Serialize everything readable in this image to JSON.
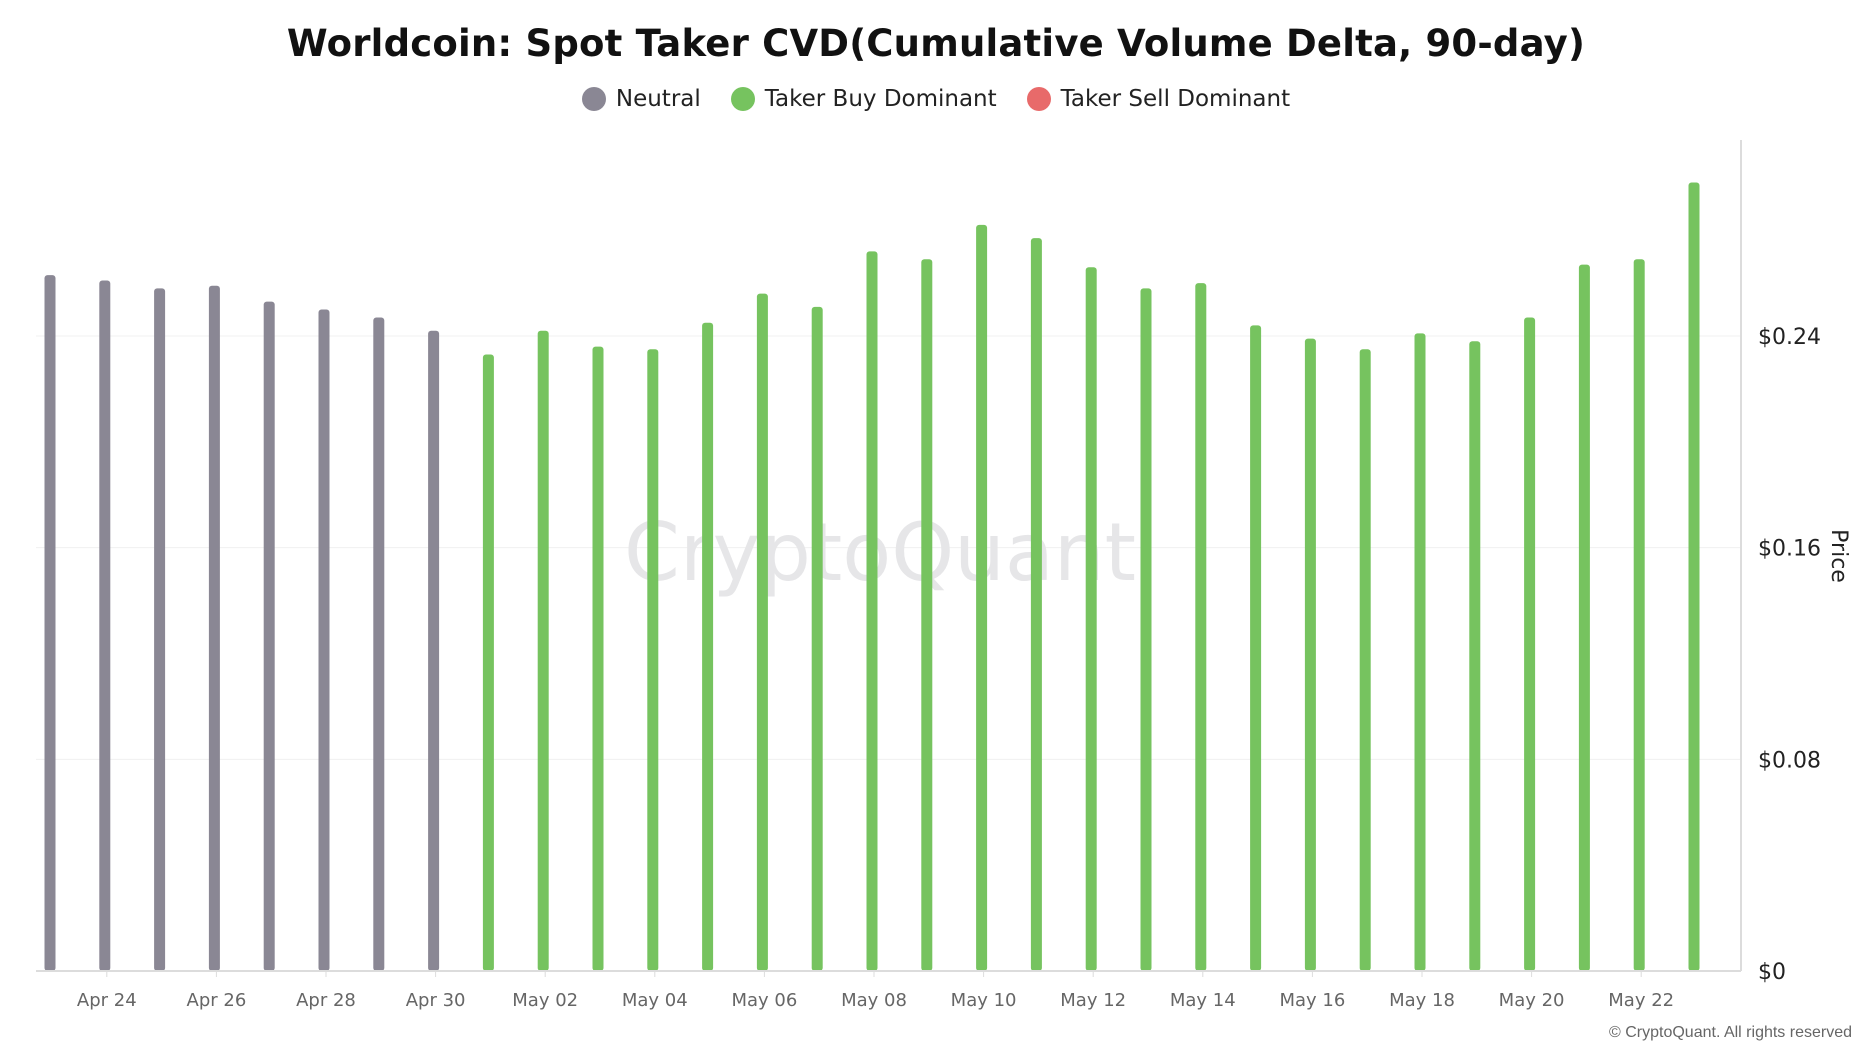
{
  "title": "Worldcoin: Spot Taker CVD(Cumulative Volume Delta, 90-day)",
  "legend": [
    {
      "label": "Neutral",
      "color": "#8a8794"
    },
    {
      "label": "Taker Buy Dominant",
      "color": "#76c35f"
    },
    {
      "label": "Taker Sell Dominant",
      "color": "#e86a6a"
    }
  ],
  "watermark": "CryptoQuant",
  "copyright": "© CryptoQuant. All rights reserved",
  "chart_data": {
    "type": "bar",
    "ylabel": "Price",
    "ylim": [
      0,
      0.3
    ],
    "yticks": [
      "$0",
      "$0.08",
      "$0.16",
      "$0.24"
    ],
    "ytick_values": [
      0,
      0.08,
      0.16,
      0.24
    ],
    "xtick_labels": [
      "Apr 24",
      "Apr 26",
      "Apr 28",
      "Apr 30",
      "May 02",
      "May 04",
      "May 06",
      "May 08",
      "May 10",
      "May 12",
      "May 14",
      "May 16",
      "May 18",
      "May 20",
      "May 22"
    ],
    "categories": [
      "Apr 23",
      "Apr 24",
      "Apr 25",
      "Apr 26",
      "Apr 27",
      "Apr 28",
      "Apr 29",
      "Apr 30",
      "May 01",
      "May 02",
      "May 03",
      "May 04",
      "May 05",
      "May 06",
      "May 07",
      "May 08",
      "May 09",
      "May 10",
      "May 11",
      "May 12",
      "May 13",
      "May 14",
      "May 15",
      "May 16",
      "May 17",
      "May 18",
      "May 19",
      "May 20",
      "May 21",
      "May 22",
      "May 23"
    ],
    "values": [
      0.263,
      0.261,
      0.258,
      0.259,
      0.253,
      0.25,
      0.247,
      0.242,
      0.233,
      0.242,
      0.236,
      0.235,
      0.245,
      0.256,
      0.251,
      0.272,
      0.269,
      0.282,
      0.277,
      0.266,
      0.258,
      0.26,
      0.244,
      0.239,
      0.235,
      0.241,
      0.238,
      0.247,
      0.267,
      0.269,
      0.298
    ],
    "status": [
      "neutral",
      "neutral",
      "neutral",
      "neutral",
      "neutral",
      "neutral",
      "neutral",
      "neutral",
      "buy",
      "buy",
      "buy",
      "buy",
      "buy",
      "buy",
      "buy",
      "buy",
      "buy",
      "buy",
      "buy",
      "buy",
      "buy",
      "buy",
      "buy",
      "buy",
      "buy",
      "buy",
      "buy",
      "buy",
      "buy",
      "buy",
      "buy"
    ],
    "status_colors": {
      "neutral": "#8a8794",
      "buy": "#76c35f",
      "sell": "#e86a6a"
    },
    "grid": true
  }
}
